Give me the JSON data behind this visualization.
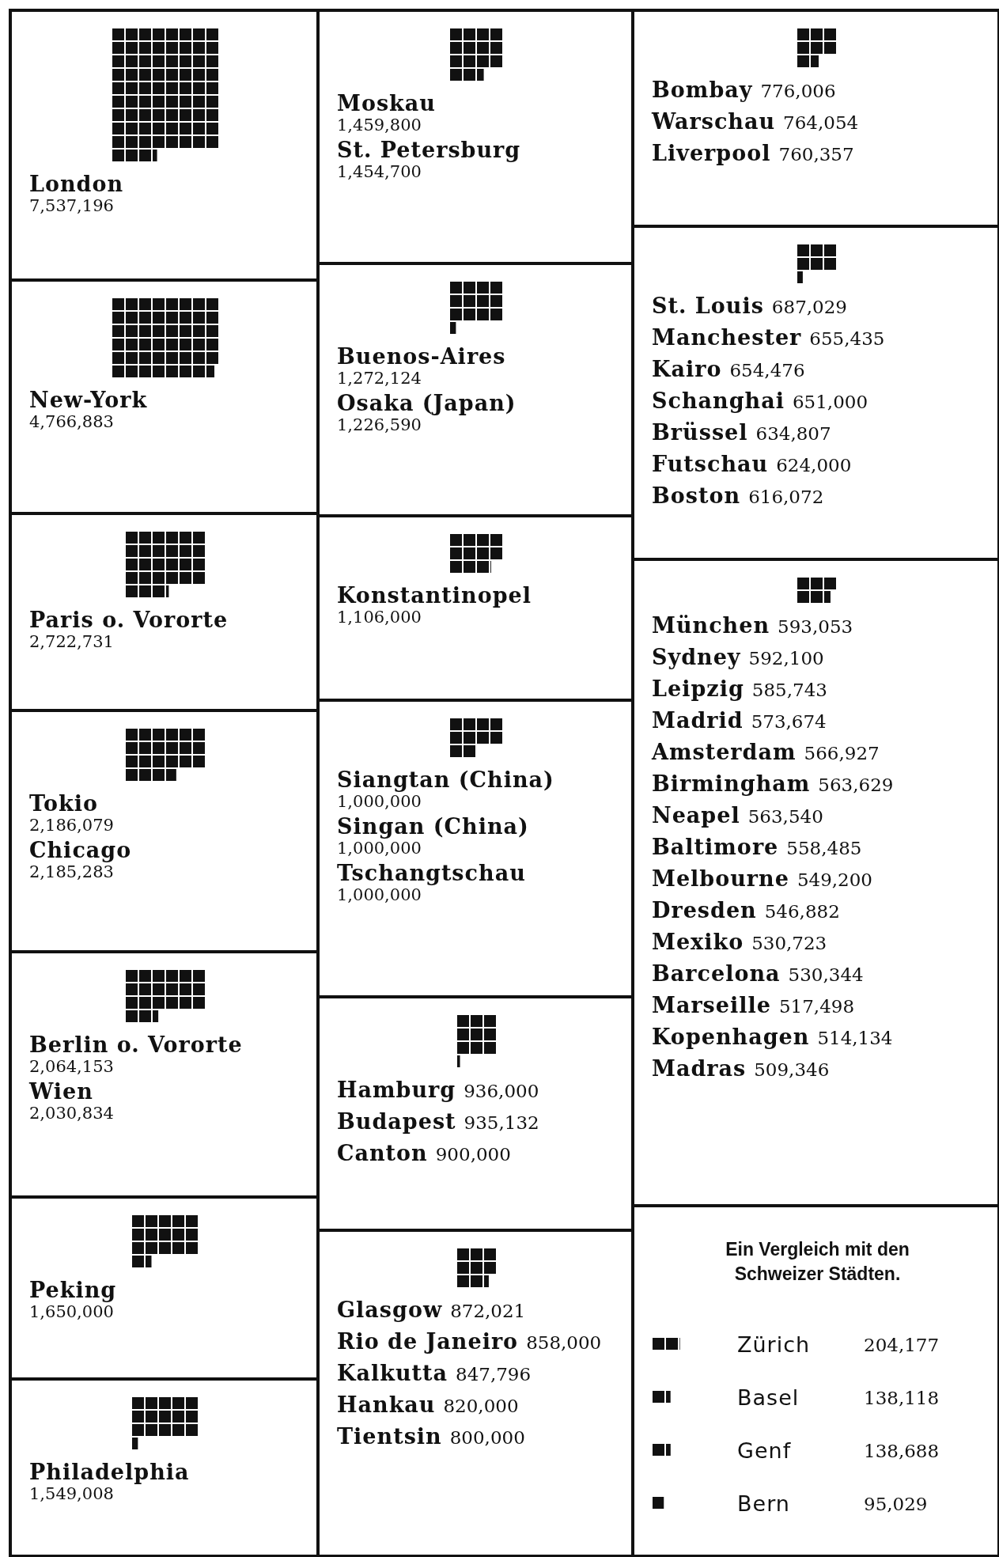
{
  "chart_data": [
    {
      "type": "other",
      "categories": [
        "London"
      ],
      "values": [
        7537196
      ],
      "value_labels": [
        "7,537,196"
      ]
    },
    {
      "type": "other",
      "categories": [
        "New-York"
      ],
      "values": [
        4766883
      ],
      "value_labels": [
        "4,766,883"
      ]
    },
    {
      "type": "other",
      "categories": [
        "Paris o. Vororte"
      ],
      "values": [
        2722731
      ],
      "value_labels": [
        "2,722,731"
      ]
    },
    {
      "type": "other",
      "categories": [
        "Tokio",
        "Chicago"
      ],
      "values": [
        2186079,
        2185283
      ],
      "value_labels": [
        "2,186,079",
        "2,185,283"
      ]
    },
    {
      "type": "other",
      "categories": [
        "Berlin o. Vororte",
        "Wien"
      ],
      "values": [
        2064153,
        2030834
      ],
      "value_labels": [
        "2,064,153",
        "2,030,834"
      ]
    },
    {
      "type": "other",
      "categories": [
        "Peking"
      ],
      "values": [
        1650000
      ],
      "value_labels": [
        "1,650,000"
      ]
    },
    {
      "type": "other",
      "categories": [
        "Philadelphia"
      ],
      "values": [
        1549008
      ],
      "value_labels": [
        "1,549,008"
      ]
    },
    {
      "type": "other",
      "categories": [
        "Moskau",
        "St. Petersburg"
      ],
      "values": [
        1459800,
        1454700
      ],
      "value_labels": [
        "1,459,800",
        "1,454,700"
      ]
    },
    {
      "type": "other",
      "categories": [
        "Buenos-Aires",
        "Osaka (Japan)"
      ],
      "values": [
        1272124,
        1226590
      ],
      "value_labels": [
        "1,272,124",
        "1,226,590"
      ]
    },
    {
      "type": "other",
      "categories": [
        "Konstantinopel"
      ],
      "values": [
        1106000
      ],
      "value_labels": [
        "1,106,000"
      ]
    },
    {
      "type": "other",
      "categories": [
        "Siangtan (China)",
        "Singan (China)",
        "Tschangtschau"
      ],
      "values": [
        1000000,
        1000000,
        1000000
      ],
      "value_labels": [
        "1,000,000",
        "1,000,000",
        "1,000,000"
      ]
    },
    {
      "type": "other",
      "categories": [
        "Hamburg",
        "Budapest",
        "Canton"
      ],
      "values": [
        936000,
        935132,
        900000
      ],
      "value_labels": [
        "936,000",
        "935,132",
        "900,000"
      ]
    },
    {
      "type": "other",
      "categories": [
        "Glasgow",
        "Rio de Janeiro",
        "Kalkutta",
        "Hankau",
        "Tientsin"
      ],
      "values": [
        872021,
        858000,
        847796,
        820000,
        800000
      ],
      "value_labels": [
        "872,021",
        "858,000",
        "847,796",
        "820,000",
        "800,000"
      ]
    },
    {
      "type": "other",
      "categories": [
        "Bombay",
        "Warschau",
        "Liverpool"
      ],
      "values": [
        776006,
        764054,
        760357
      ],
      "value_labels": [
        "776,006",
        "764,054",
        "760,357"
      ]
    },
    {
      "type": "other",
      "categories": [
        "St. Louis",
        "Manchester",
        "Kairo",
        "Schanghai",
        "Brüssel",
        "Futschau",
        "Boston"
      ],
      "values": [
        687029,
        655435,
        654476,
        651000,
        634807,
        624000,
        616072
      ],
      "value_labels": [
        "687,029",
        "655,435",
        "654,476",
        "651,000",
        "634,807",
        "624,000",
        "616,072"
      ]
    },
    {
      "type": "other",
      "categories": [
        "München",
        "Sydney",
        "Leipzig",
        "Madrid",
        "Amsterdam",
        "Birmingham",
        "Neapel",
        "Baltimore",
        "Melbourne",
        "Dresden",
        "Mexiko",
        "Barcelona",
        "Marseille",
        "Kopenhagen",
        "Madras"
      ],
      "values": [
        593053,
        592100,
        585743,
        573674,
        566927,
        563629,
        563540,
        558485,
        549200,
        546882,
        530723,
        530344,
        517498,
        514134,
        509346
      ],
      "value_labels": [
        "593,053",
        "592,100",
        "585,743",
        "573,674",
        "566,927",
        "563,629",
        "563,540",
        "558,485",
        "549,200",
        "546,882",
        "530,723",
        "530,344",
        "517,498",
        "514,134",
        "509,346"
      ]
    },
    {
      "type": "other",
      "title": "Ein Vergleich mit den Schweizer Städten.",
      "categories": [
        "Zürich",
        "Basel",
        "Genf",
        "Bern"
      ],
      "values": [
        204177,
        138118,
        138688,
        95029
      ],
      "value_labels": [
        "204,177",
        "138,118",
        "138,688",
        "95,029"
      ]
    }
  ]
}
